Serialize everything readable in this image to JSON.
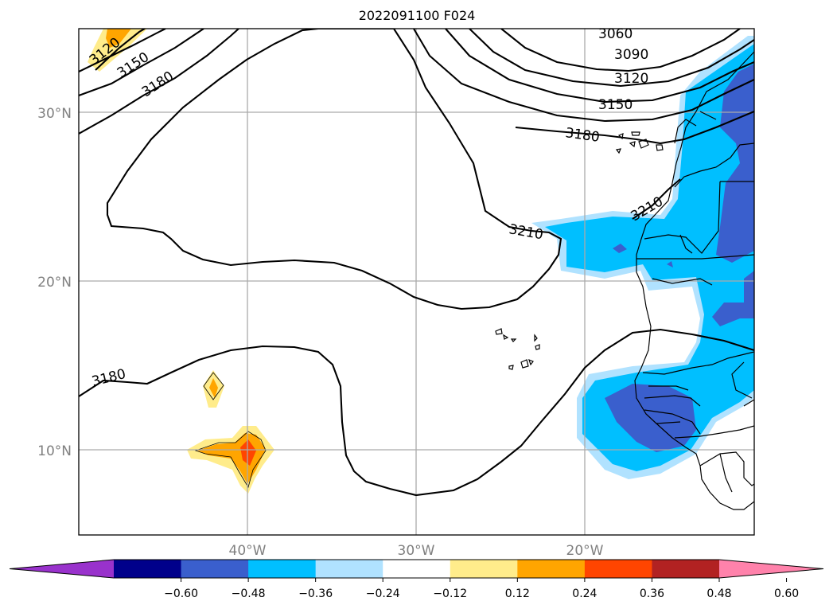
{
  "title": "2022091100 F024",
  "map": {
    "lat_labels": [
      "30°N",
      "20°N",
      "10°N"
    ],
    "lon_labels": [
      "40°W",
      "30°W",
      "20°W"
    ],
    "contour_labels": [
      "3060",
      "3090",
      "3120",
      "3150",
      "3180",
      "3210",
      "3120",
      "3150",
      "3180",
      "3180",
      "3210"
    ],
    "colors": {
      "deep_blue": "#3a5fcd",
      "cyan": "#00bfff",
      "light_blue": "#b0e2ff",
      "yellow": "#ffec8b",
      "orange": "#ffa500",
      "red_orange": "#ff4500"
    }
  },
  "colorbar": {
    "ticks": [
      "−0.60",
      "−0.48",
      "−0.36",
      "−0.24",
      "−0.12",
      "0.12",
      "0.24",
      "0.36",
      "0.48",
      "0.60"
    ],
    "colors": [
      "#9932cc",
      "#00008b",
      "#3a5fcd",
      "#00bfff",
      "#b0e2ff",
      "#ffffff",
      "#ffec8b",
      "#ffa500",
      "#ff4500",
      "#b22222",
      "#ff82ab"
    ]
  }
}
